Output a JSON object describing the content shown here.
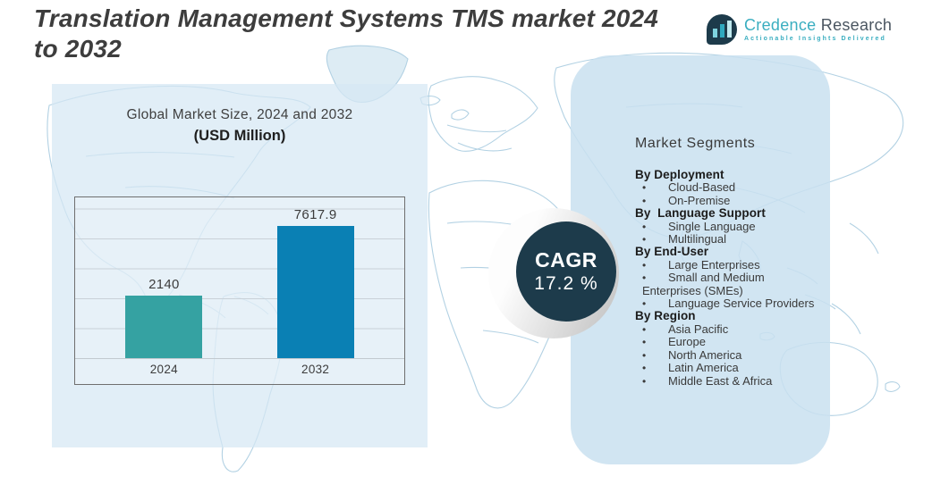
{
  "title": "Translation Management Systems TMS market 2024 to 2032",
  "logo": {
    "brand_primary": "Credence",
    "brand_secondary": "Research",
    "tagline": "Actionable Insights Delivered"
  },
  "market_size_panel": {
    "heading": "Global Market Size, 2024 and 2032",
    "subheading": "(USD Million)"
  },
  "chart_data": {
    "type": "bar",
    "title": "Global Market Size, 2024 and 2032 (USD Million)",
    "unit": "USD Million",
    "categories": [
      "2024",
      "2032"
    ],
    "values": [
      2140,
      7617.9
    ],
    "value_labels": [
      "2140",
      "7617.9"
    ],
    "bar_colors": [
      "#35a2a2",
      "#0a80b4"
    ],
    "bar_centers_pct": [
      27,
      73
    ],
    "grid": "horizontal",
    "legend": "none",
    "ylim": [
      0,
      8000
    ]
  },
  "cagr": {
    "label": "CAGR",
    "value": "17.2 %"
  },
  "segments": {
    "title": "Market Segments",
    "groups": [
      {
        "heading": "By Deployment",
        "items": [
          "Cloud-Based",
          "On-Premise"
        ]
      },
      {
        "heading": "By  Language Support",
        "items": [
          "Single Language",
          "Multilingual"
        ]
      },
      {
        "heading": "By End-User",
        "items": [
          "Large Enterprises",
          "Small and Medium Enterprises (SMEs)",
          "Language Service Providers"
        ]
      },
      {
        "heading": "By Region",
        "items": [
          "Asia Pacific",
          "Europe",
          "North America",
          "Latin America",
          "Middle East & Africa"
        ]
      }
    ]
  },
  "colors": {
    "bar_2024": "#35a2a2",
    "bar_2032": "#0a80b4",
    "cagr_circle": "#1d3b4b",
    "left_panel": "#d6e7f3",
    "right_panel": "#cfe2ee",
    "map_outline": "#aecfe2",
    "title_text": "#3d3d3d",
    "logo_teal": "#3aaec0",
    "logo_dark": "#4a5560"
  }
}
